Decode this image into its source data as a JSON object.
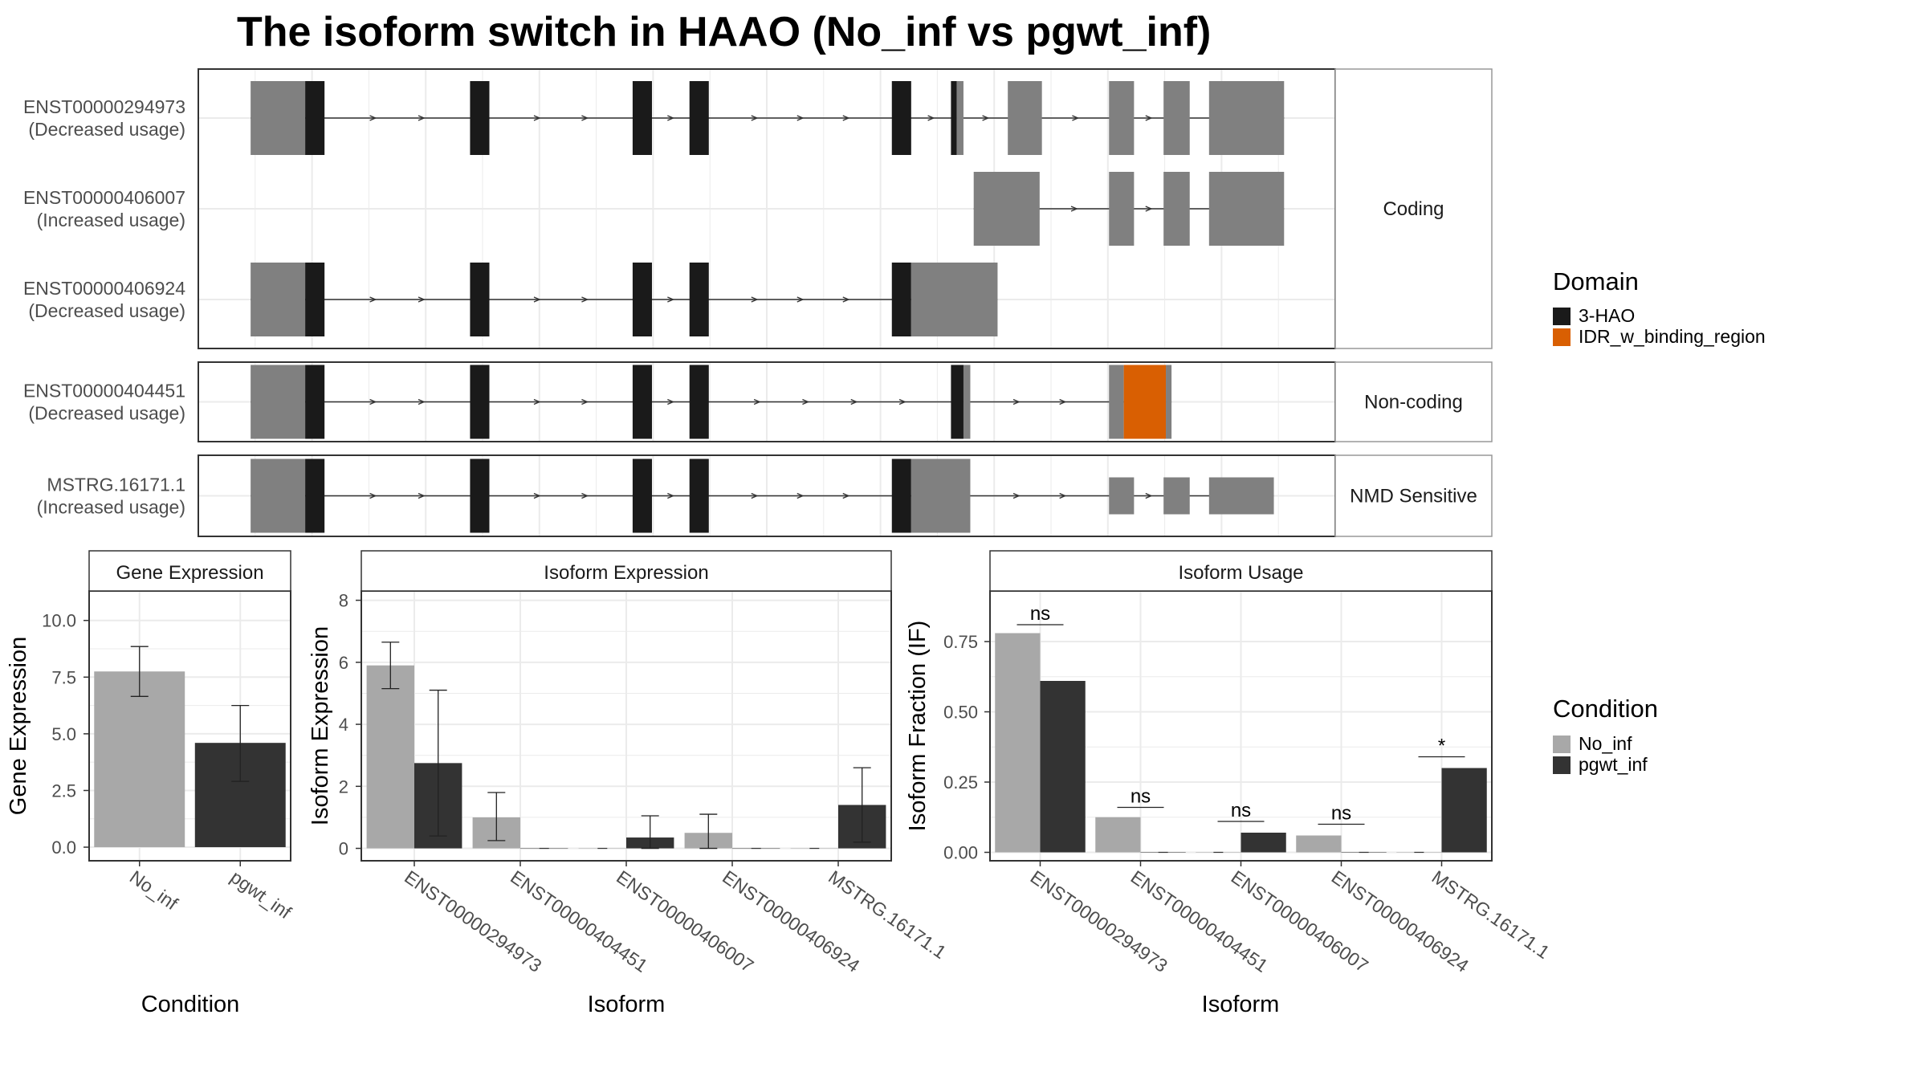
{
  "title": "The isoform switch in HAAO (No_inf vs pgwt_inf)",
  "colors": {
    "utr": "#808080",
    "domain_3hao": "#1a1a1a",
    "domain_idr": "#d95f02",
    "no_inf": "#a8a8a8",
    "pgwt_inf": "#333333",
    "grid": "#ebebeb",
    "panel_border": "#333333",
    "strip_border": "#999999"
  },
  "structure": {
    "x_range": [
      0,
      1000
    ],
    "legend": {
      "title": "Domain",
      "items": [
        {
          "label": "3-HAO",
          "color_key": "domain_3hao"
        },
        {
          "label": "IDR_w_binding_region",
          "color_key": "domain_idr"
        }
      ]
    },
    "groups": [
      {
        "name": "Coding",
        "isoforms": [
          {
            "id": "ENST00000294973",
            "usage": "(Decreased usage)",
            "exons": [
              [
                46,
                94,
                "utr"
              ],
              [
                94,
                111,
                "domain_3hao"
              ],
              [
                239,
                256,
                "domain_3hao"
              ],
              [
                382,
                399,
                "domain_3hao"
              ],
              [
                432,
                449,
                "domain_3hao"
              ],
              [
                610,
                627,
                "domain_3hao"
              ],
              [
                662,
                667,
                "domain_3hao"
              ],
              [
                667,
                673,
                "utr"
              ],
              [
                712,
                742,
                "utr"
              ],
              [
                801,
                823,
                "utr"
              ],
              [
                849,
                872,
                "utr"
              ],
              [
                889,
                955,
                "utr"
              ]
            ],
            "narrow": [
              [
                46,
                69
              ]
            ]
          },
          {
            "id": "ENST00000406007",
            "usage": "(Increased usage)",
            "exons": [
              [
                682,
                740,
                "utr"
              ],
              [
                801,
                823,
                "utr"
              ],
              [
                849,
                872,
                "utr"
              ],
              [
                889,
                955,
                "utr"
              ]
            ],
            "narrow": [
              [
                682,
                721
              ],
              [
                889,
                906
              ]
            ]
          },
          {
            "id": "ENST00000406924",
            "usage": "(Decreased usage)",
            "exons": [
              [
                46,
                94,
                "utr"
              ],
              [
                94,
                111,
                "domain_3hao"
              ],
              [
                239,
                256,
                "domain_3hao"
              ],
              [
                382,
                399,
                "domain_3hao"
              ],
              [
                432,
                449,
                "domain_3hao"
              ],
              [
                610,
                627,
                "domain_3hao"
              ],
              [
                627,
                703,
                "utr"
              ]
            ],
            "narrow": [
              [
                46,
                69
              ]
            ]
          }
        ]
      },
      {
        "name": "Non-coding",
        "isoforms": [
          {
            "id": "ENST00000404451",
            "usage": "(Decreased usage)",
            "exons": [
              [
                46,
                94,
                "utr"
              ],
              [
                94,
                111,
                "domain_3hao"
              ],
              [
                239,
                256,
                "domain_3hao"
              ],
              [
                382,
                399,
                "domain_3hao"
              ],
              [
                432,
                449,
                "domain_3hao"
              ],
              [
                662,
                673,
                "domain_3hao"
              ],
              [
                673,
                679,
                "utr"
              ],
              [
                801,
                814,
                "utr"
              ],
              [
                814,
                851,
                "domain_idr"
              ],
              [
                851,
                856,
                "utr"
              ]
            ],
            "narrow": [
              [
                46,
                69
              ]
            ]
          }
        ]
      },
      {
        "name": "NMD Sensitive",
        "isoforms": [
          {
            "id": "MSTRG.16171.1",
            "usage": "(Increased usage)",
            "exons": [
              [
                46,
                94,
                "utr"
              ],
              [
                94,
                111,
                "domain_3hao"
              ],
              [
                239,
                256,
                "domain_3hao"
              ],
              [
                382,
                399,
                "domain_3hao"
              ],
              [
                432,
                449,
                "domain_3hao"
              ],
              [
                610,
                627,
                "domain_3hao"
              ],
              [
                627,
                679,
                "utr"
              ],
              [
                801,
                823,
                "utr"
              ],
              [
                849,
                872,
                "utr"
              ],
              [
                889,
                946,
                "utr"
              ]
            ],
            "narrow": [
              [
                46,
                69
              ],
              [
                801,
                823
              ],
              [
                849,
                872
              ],
              [
                889,
                946
              ]
            ]
          }
        ]
      }
    ]
  },
  "condition_legend": {
    "title": "Condition",
    "items": [
      {
        "label": "No_inf",
        "color_key": "no_inf"
      },
      {
        "label": "pgwt_inf",
        "color_key": "pgwt_inf"
      }
    ]
  },
  "chart_data": [
    {
      "type": "bar",
      "title": "Gene Expression",
      "xlabel": "Condition",
      "ylabel": "Gene Expression",
      "ylim": [
        -0.6,
        11.3
      ],
      "yticks": [
        0.0,
        2.5,
        5.0,
        7.5,
        10.0
      ],
      "ytick_labels": [
        "0.0",
        "2.5",
        "5.0",
        "7.5",
        "10.0"
      ],
      "categories": [
        "No_inf",
        "pgwt_inf"
      ],
      "series": [
        {
          "values": [
            7.75,
            4.6
          ],
          "errors_low": [
            6.65,
            2.9
          ],
          "errors_high": [
            8.85,
            6.25
          ]
        }
      ],
      "grid": true
    },
    {
      "type": "bar",
      "title": "Isoform Expression",
      "xlabel": "Isoform",
      "ylabel": "Isoform Expression",
      "ylim": [
        -0.4,
        8.3
      ],
      "yticks": [
        0,
        2,
        4,
        6,
        8
      ],
      "ytick_labels": [
        "0",
        "2",
        "4",
        "6",
        "8"
      ],
      "categories": [
        "ENST00000294973",
        "ENST00000404451",
        "ENST00000406007",
        "ENST00000406924",
        "MSTRG.16171.1"
      ],
      "series": [
        {
          "name": "No_inf",
          "values": [
            5.9,
            1.0,
            0.0,
            0.5,
            0.0
          ],
          "errors_low": [
            5.15,
            0.25,
            null,
            0.0,
            null
          ],
          "errors_high": [
            6.65,
            1.8,
            null,
            1.1,
            null
          ]
        },
        {
          "name": "pgwt_inf",
          "values": [
            2.75,
            0.0,
            0.35,
            0.0,
            1.4
          ],
          "errors_low": [
            0.4,
            null,
            0.0,
            null,
            0.2
          ],
          "errors_high": [
            5.1,
            null,
            1.05,
            null,
            2.6
          ]
        }
      ],
      "grid": true
    },
    {
      "type": "bar",
      "title": "Isoform Usage",
      "xlabel": "Isoform",
      "ylabel": "Isoform Fraction (IF)",
      "ylim": [
        -0.03,
        0.93
      ],
      "yticks": [
        0.0,
        0.25,
        0.5,
        0.75
      ],
      "ytick_labels": [
        "0.00",
        "0.25",
        "0.50",
        "0.75"
      ],
      "categories": [
        "ENST00000294973",
        "ENST00000404451",
        "ENST00000406007",
        "ENST00000406924",
        "MSTRG.16171.1"
      ],
      "series": [
        {
          "name": "No_inf",
          "values": [
            0.78,
            0.125,
            0.0,
            0.06,
            0.0
          ]
        },
        {
          "name": "pgwt_inf",
          "values": [
            0.61,
            0.0,
            0.07,
            0.0,
            0.3
          ]
        }
      ],
      "significance": [
        {
          "label": "ns",
          "y": 0.81
        },
        {
          "label": "ns",
          "y": 0.16
        },
        {
          "label": "ns",
          "y": 0.11
        },
        {
          "label": "ns",
          "y": 0.1
        },
        {
          "label": "*",
          "y": 0.34
        }
      ],
      "grid": true
    }
  ]
}
